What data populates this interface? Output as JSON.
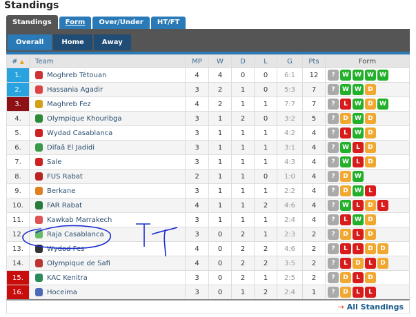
{
  "title": "Standings",
  "tabs": [
    {
      "label": "Standings"
    },
    {
      "label": "Form"
    },
    {
      "label": "Over/Under"
    },
    {
      "label": "HT/FT"
    }
  ],
  "subtabs": [
    {
      "label": "Overall"
    },
    {
      "label": "Home"
    },
    {
      "label": "Away"
    }
  ],
  "columns": [
    "#",
    "Team",
    "MP",
    "W",
    "D",
    "L",
    "G",
    "Pts",
    "Form"
  ],
  "colors": {
    "win": "#22b02a",
    "draw": "#f0a830",
    "loss": "#d81c1c",
    "unknown": "#aaaaaa",
    "promotion": "#28a3e0",
    "playoff": "#8e1116",
    "relegation": "#c90c0c"
  },
  "rows": [
    {
      "rank": "1.",
      "team": "Moghreb Tétouan",
      "mp": "4",
      "w": "4",
      "d": "0",
      "l": "0",
      "g": "6:1",
      "pts": "12",
      "form": [
        "?",
        "W",
        "W",
        "W",
        "W"
      ],
      "zone": "blue",
      "logo": "#c33"
    },
    {
      "rank": "2.",
      "team": "Hassania Agadir",
      "mp": "3",
      "w": "2",
      "d": "1",
      "l": "0",
      "g": "5:3",
      "pts": "7",
      "form": [
        "?",
        "W",
        "W",
        "D"
      ],
      "zone": "blue",
      "logo": "#d44"
    },
    {
      "rank": "3.",
      "team": "Maghreb Fez",
      "mp": "4",
      "w": "2",
      "d": "1",
      "l": "1",
      "g": "7:7",
      "pts": "7",
      "form": [
        "?",
        "L",
        "W",
        "D",
        "W"
      ],
      "zone": "dred",
      "logo": "#d4a017"
    },
    {
      "rank": "4.",
      "team": "Olympique Khouribga",
      "mp": "3",
      "w": "1",
      "d": "2",
      "l": "0",
      "g": "3:2",
      "pts": "5",
      "form": [
        "?",
        "D",
        "W",
        "D"
      ],
      "zone": "",
      "logo": "#2a8a3a"
    },
    {
      "rank": "5.",
      "team": "Wydad Casablanca",
      "mp": "3",
      "w": "1",
      "d": "1",
      "l": "1",
      "g": "4:2",
      "pts": "4",
      "form": [
        "?",
        "L",
        "W",
        "D"
      ],
      "zone": "",
      "logo": "#c22"
    },
    {
      "rank": "6.",
      "team": "Difaâ El Jadidi",
      "mp": "3",
      "w": "1",
      "d": "1",
      "l": "1",
      "g": "3:1",
      "pts": "4",
      "form": [
        "?",
        "W",
        "L",
        "D"
      ],
      "zone": "",
      "logo": "#3a9a4a"
    },
    {
      "rank": "7.",
      "team": "Sale",
      "mp": "3",
      "w": "1",
      "d": "1",
      "l": "1",
      "g": "4:3",
      "pts": "4",
      "form": [
        "?",
        "W",
        "L",
        "D"
      ],
      "zone": "",
      "logo": "#c22"
    },
    {
      "rank": "8.",
      "team": "FUS Rabat",
      "mp": "2",
      "w": "1",
      "d": "1",
      "l": "0",
      "g": "1:0",
      "pts": "4",
      "form": [
        "?",
        "D",
        "W"
      ],
      "zone": "",
      "logo": "#b22"
    },
    {
      "rank": "9.",
      "team": "Berkane",
      "mp": "3",
      "w": "1",
      "d": "1",
      "l": "1",
      "g": "2:2",
      "pts": "4",
      "form": [
        "?",
        "D",
        "W",
        "L"
      ],
      "zone": "",
      "logo": "#e08020"
    },
    {
      "rank": "10.",
      "team": "FAR Rabat",
      "mp": "4",
      "w": "1",
      "d": "1",
      "l": "2",
      "g": "4:6",
      "pts": "4",
      "form": [
        "?",
        "W",
        "L",
        "D",
        "L"
      ],
      "zone": "",
      "logo": "#2a7a3a"
    },
    {
      "rank": "11.",
      "team": "Kawkab Marrakech",
      "mp": "3",
      "w": "1",
      "d": "1",
      "l": "1",
      "g": "2:4",
      "pts": "4",
      "form": [
        "?",
        "L",
        "W",
        "D"
      ],
      "zone": "",
      "logo": "#d55"
    },
    {
      "rank": "12.",
      "team": "Raja Casablanca",
      "mp": "3",
      "w": "0",
      "d": "2",
      "l": "1",
      "g": "2:3",
      "pts": "2",
      "form": [
        "?",
        "D",
        "L",
        "D"
      ],
      "zone": "",
      "logo": "#6b6"
    },
    {
      "rank": "13.",
      "team": "Wydad Fes",
      "mp": "4",
      "w": "0",
      "d": "2",
      "l": "2",
      "g": "4:6",
      "pts": "2",
      "form": [
        "?",
        "L",
        "L",
        "D",
        "D"
      ],
      "zone": "",
      "logo": "#333"
    },
    {
      "rank": "14.",
      "team": "Olympique de Safi",
      "mp": "4",
      "w": "0",
      "d": "2",
      "l": "2",
      "g": "3:5",
      "pts": "2",
      "form": [
        "?",
        "L",
        "D",
        "L",
        "D"
      ],
      "zone": "",
      "logo": "#b33"
    },
    {
      "rank": "15.",
      "team": "KAC Kenitra",
      "mp": "3",
      "w": "0",
      "d": "2",
      "l": "1",
      "g": "2:5",
      "pts": "2",
      "form": [
        "?",
        "D",
        "L",
        "D"
      ],
      "zone": "red",
      "logo": "#2a8a5a"
    },
    {
      "rank": "16.",
      "team": "Hoceima",
      "mp": "3",
      "w": "0",
      "d": "1",
      "l": "2",
      "g": "2:4",
      "pts": "1",
      "form": [
        "?",
        "D",
        "L",
        "L"
      ],
      "zone": "red",
      "logo": "#4a6ab8"
    }
  ],
  "footer": {
    "link": "All Standings"
  }
}
